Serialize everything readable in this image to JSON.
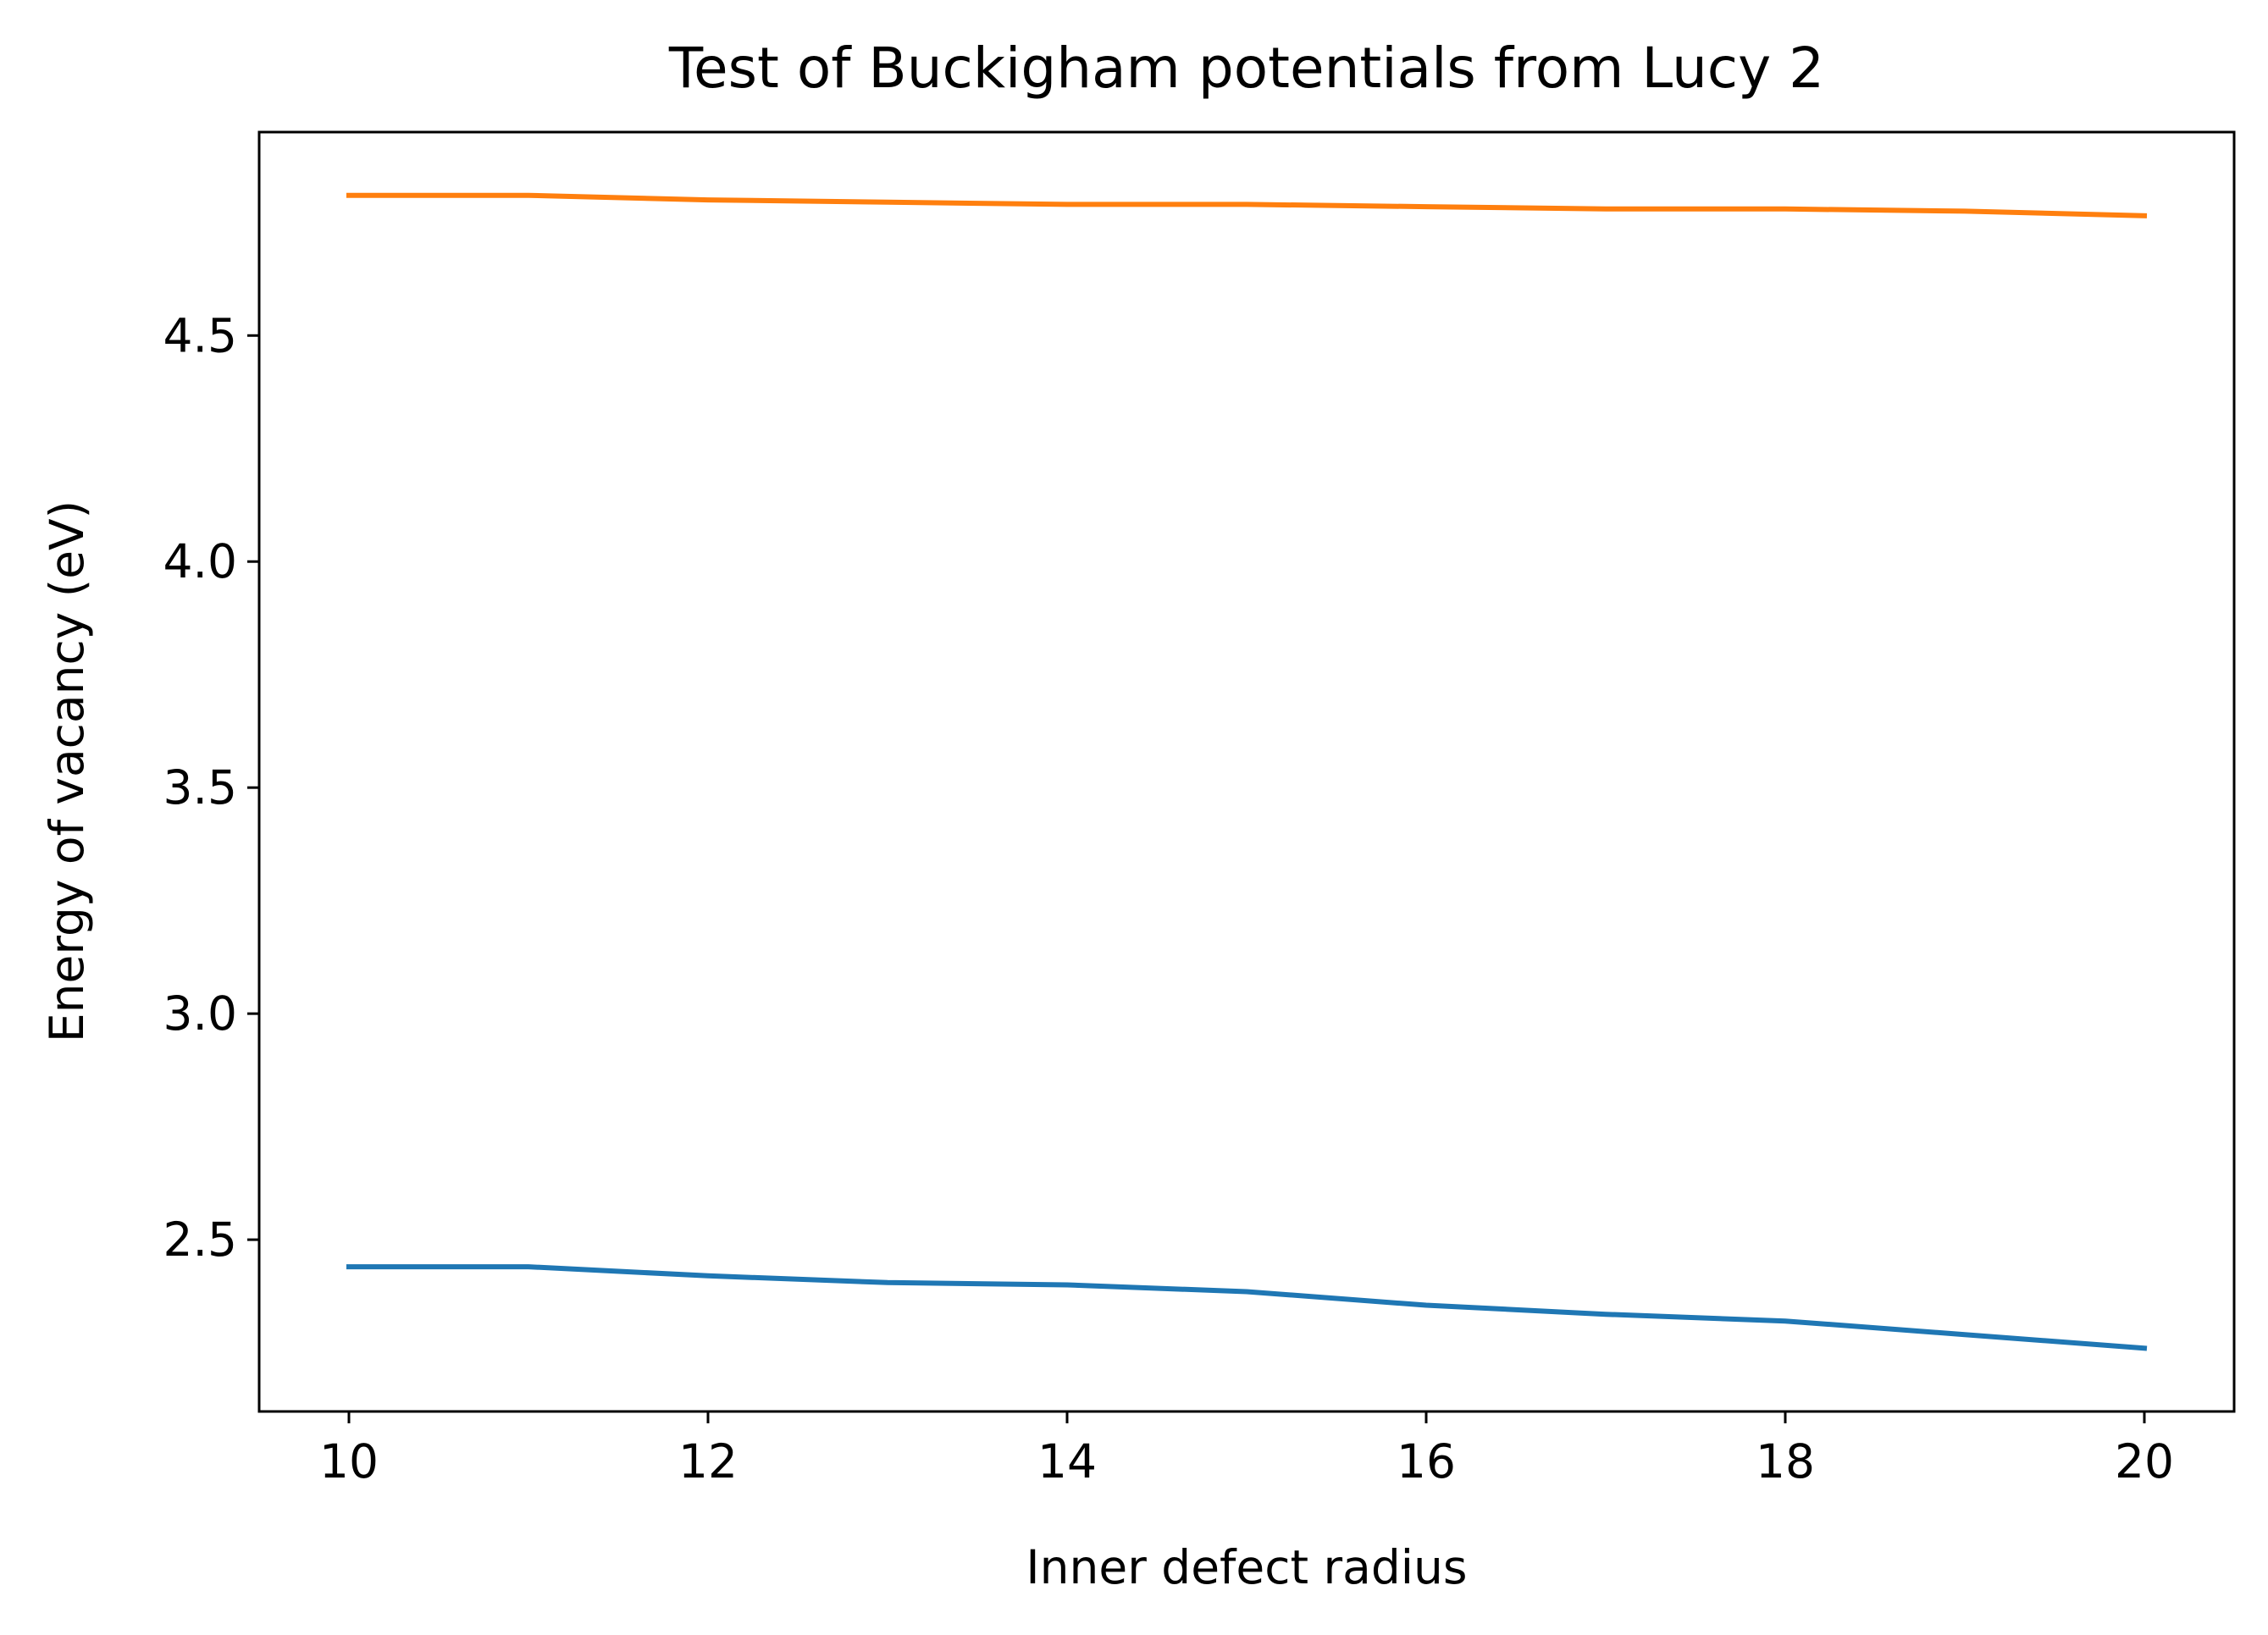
{
  "chart_data": {
    "type": "line",
    "title": "Test of Buckigham potentials from Lucy 2",
    "xlabel": "Inner defect radius",
    "ylabel": "Energy of vacancy (eV)",
    "xlim": [
      9.5,
      20.5
    ],
    "ylim": [
      2.12,
      4.95
    ],
    "xticks": [
      10,
      12,
      14,
      16,
      18,
      20
    ],
    "xtick_labels": [
      "10",
      "12",
      "14",
      "16",
      "18",
      "20"
    ],
    "yticks": [
      2.5,
      3.0,
      3.5,
      4.0,
      4.5
    ],
    "ytick_labels": [
      "2.5",
      "3.0",
      "3.5",
      "4.0",
      "4.5"
    ],
    "grid": false,
    "legend": "none",
    "x": [
      10,
      11,
      12,
      13,
      14,
      15,
      16,
      17,
      18,
      19,
      20
    ],
    "series": [
      {
        "color": "#1f77b4",
        "values": [
          2.44,
          2.44,
          2.42,
          2.405,
          2.4,
          2.385,
          2.355,
          2.335,
          2.32,
          2.29,
          2.26
        ]
      },
      {
        "color": "#ff7f0e",
        "values": [
          4.81,
          4.81,
          4.8,
          4.795,
          4.79,
          4.79,
          4.785,
          4.78,
          4.78,
          4.775,
          4.765
        ]
      }
    ]
  }
}
